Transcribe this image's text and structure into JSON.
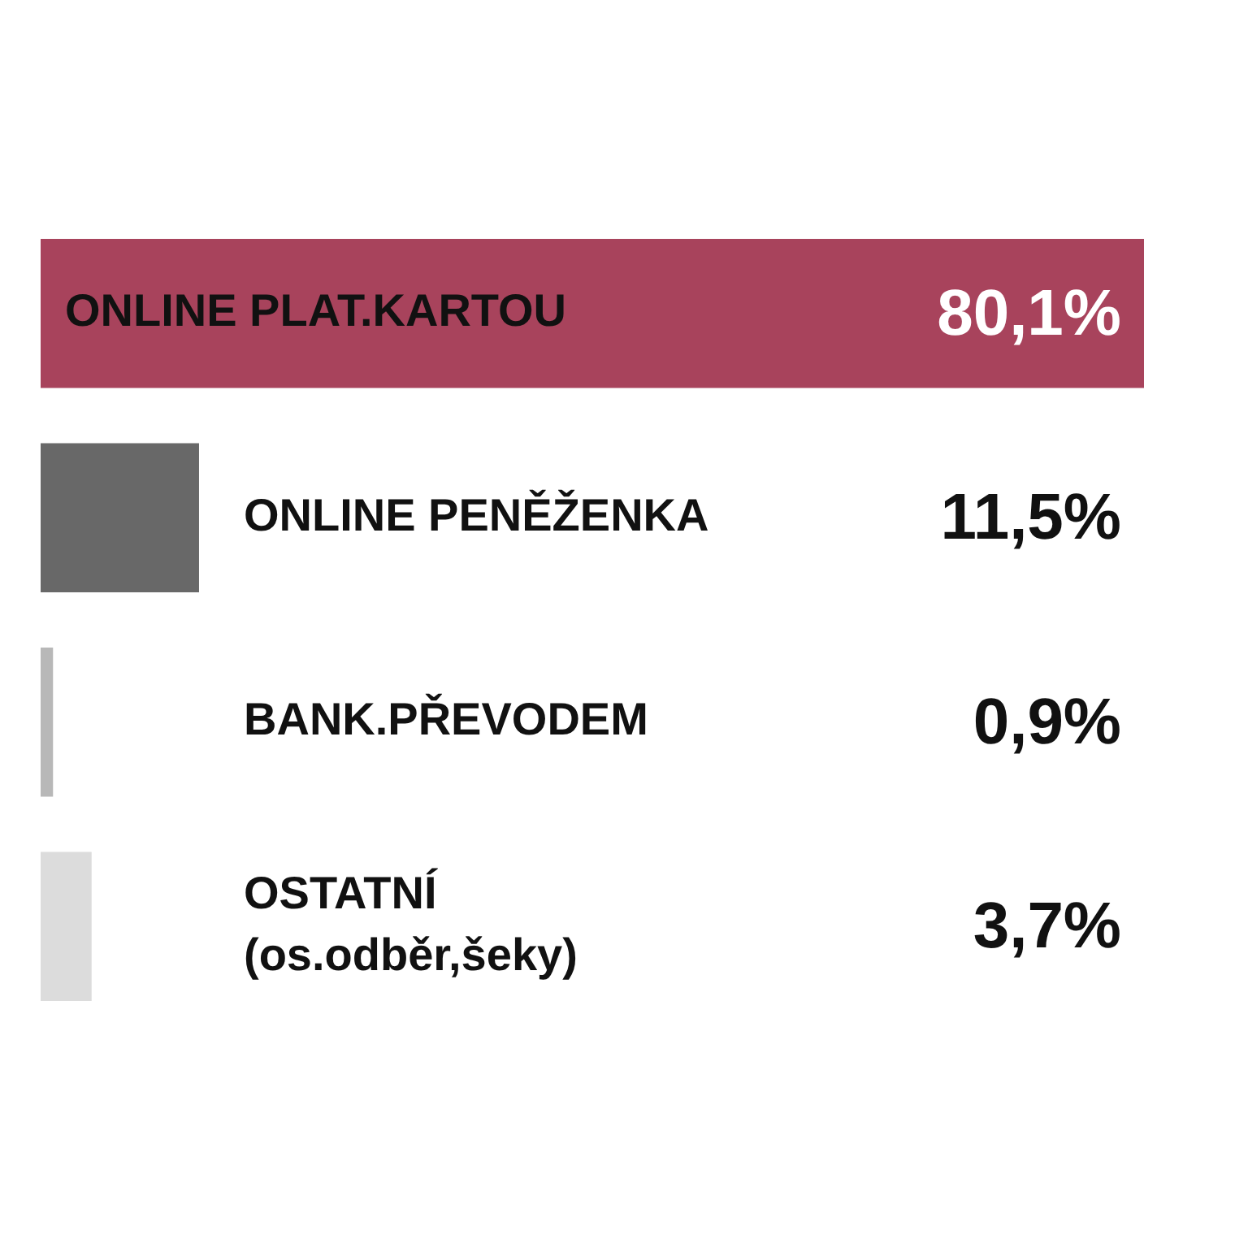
{
  "chart_data": {
    "type": "bar",
    "orientation": "horizontal",
    "categories": [
      "ONLINE PLAT.KARTOU",
      "ONLINE PENĚŽENKA",
      "BANK.PŘEVODEM",
      "OSTATNÍ\n(os.odběr,šeky)"
    ],
    "values": [
      80.1,
      11.5,
      0.9,
      3.7
    ],
    "colors": [
      "#a8435c",
      "#686868",
      "#b8b8b8",
      "#dcdcdc"
    ],
    "value_labels": [
      "80,1%",
      "11,5%",
      "0,9%",
      "3,7%"
    ],
    "xlim": [
      0,
      80.1
    ],
    "tick_labels": "y",
    "legend": false,
    "grid": false
  }
}
